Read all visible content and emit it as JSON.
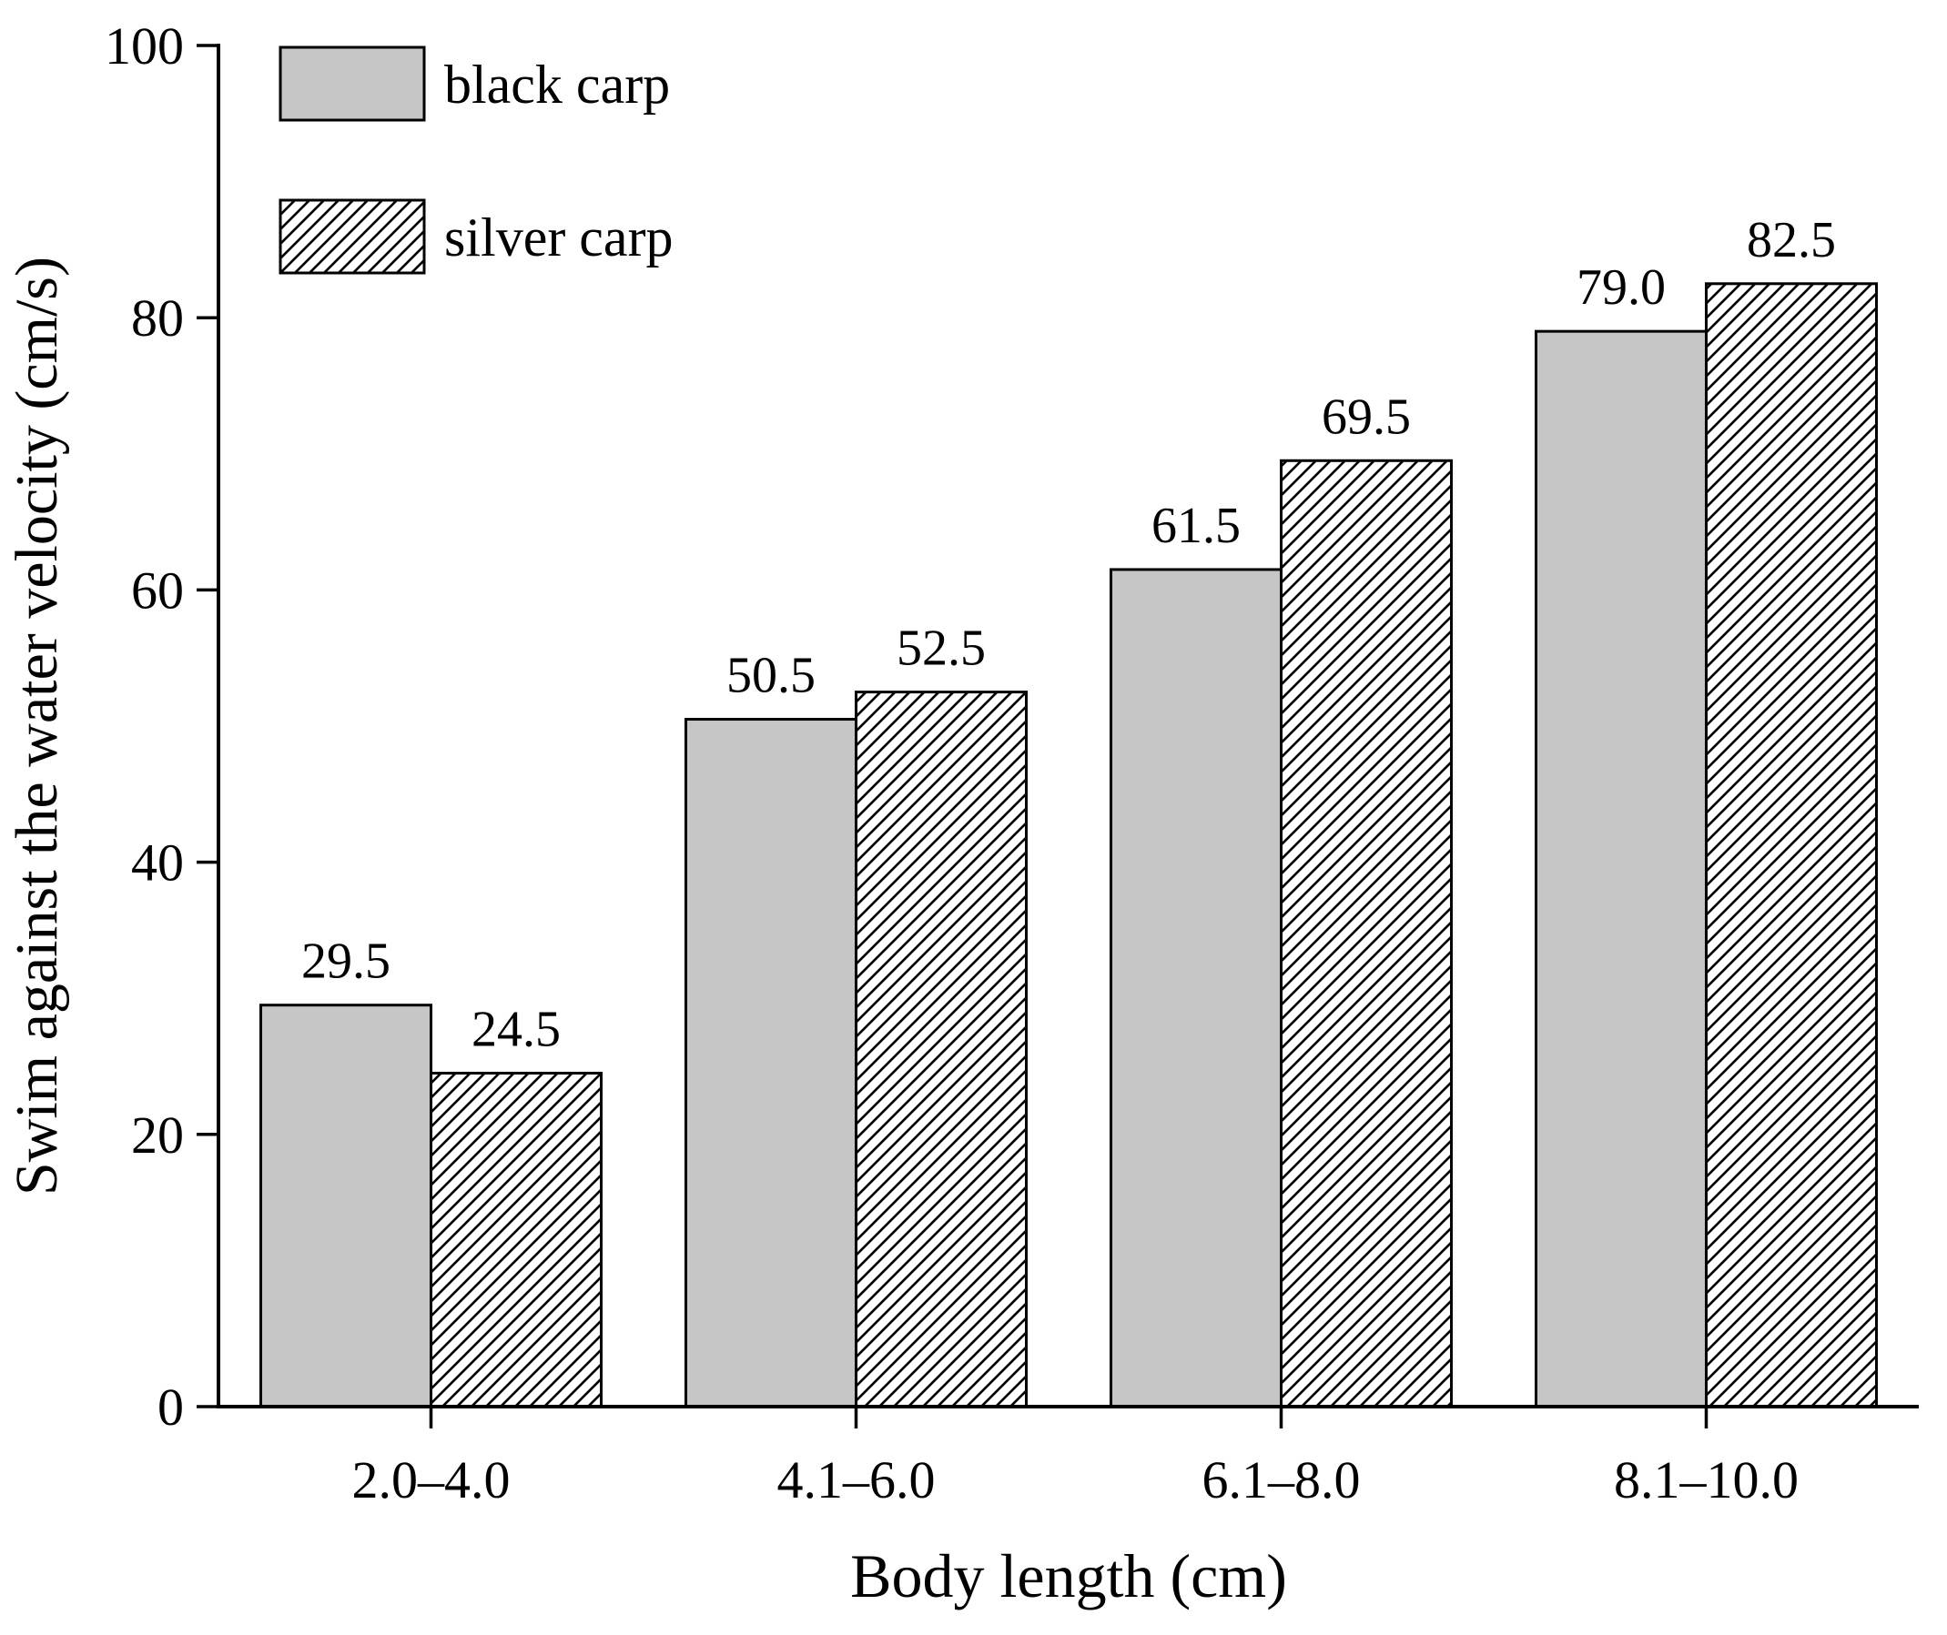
{
  "figure": {
    "background": "#ffffff",
    "axis_color": "#000000"
  },
  "chart_data": {
    "type": "bar",
    "title": "",
    "categories": [
      "2.0–4.0",
      "4.1–6.0",
      "6.1–8.0",
      "8.1–10.0"
    ],
    "series": [
      {
        "name": "black carp",
        "values": [
          29.5,
          50.5,
          61.5,
          79.0
        ],
        "labels": [
          "29.5",
          "50.5",
          "61.5",
          "79.0"
        ],
        "fill": "#c6c6c6",
        "hatch": false
      },
      {
        "name": "silver carp",
        "values": [
          24.5,
          52.5,
          69.5,
          82.5
        ],
        "labels": [
          "24.5",
          "52.5",
          "69.5",
          "82.5"
        ],
        "fill": "#ffffff",
        "hatch": true
      }
    ],
    "xlabel": "Body length (cm)",
    "ylabel": "Swim against the water velocity (cm/s)",
    "ylim": [
      0,
      100
    ],
    "yticks": [
      "0",
      "20",
      "40",
      "60",
      "80",
      "100"
    ],
    "ytick_values": [
      0,
      20,
      40,
      60,
      80,
      100
    ],
    "legend_position": "top-left",
    "grid": false,
    "bar_edge_color": "#000000",
    "data_labels": true
  }
}
